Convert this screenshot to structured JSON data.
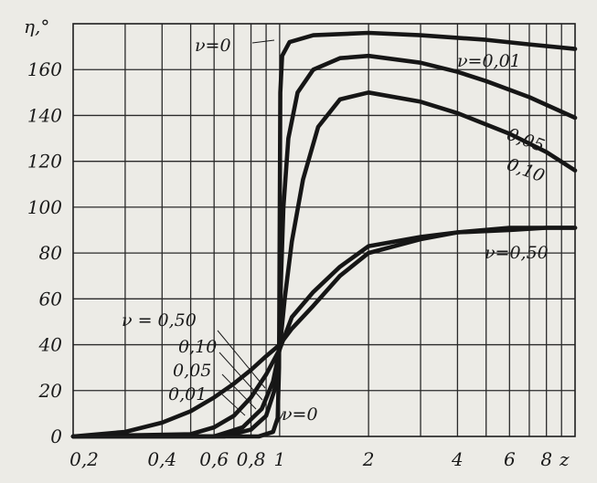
{
  "chart_data": {
    "type": "line",
    "title": "",
    "ylabel": "η,°",
    "xlabel": "z",
    "x_scale": "log",
    "xlim": [
      0.2,
      10
    ],
    "ylim": [
      0,
      180
    ],
    "grid": true,
    "x_ticks": [
      {
        "value": 0.2,
        "label": "0,2"
      },
      {
        "value": 0.4,
        "label": "0,4"
      },
      {
        "value": 0.6,
        "label": "0,6"
      },
      {
        "value": 0.8,
        "label": "0,8"
      },
      {
        "value": 1,
        "label": "1"
      },
      {
        "value": 2,
        "label": "2"
      },
      {
        "value": 4,
        "label": "4"
      },
      {
        "value": 6,
        "label": "6"
      },
      {
        "value": 8,
        "label": "8"
      }
    ],
    "x_axis_end_label": "z",
    "x_gridlines": [
      0.3,
      0.4,
      0.5,
      0.6,
      0.7,
      0.8,
      0.9,
      1,
      2,
      3,
      4,
      5,
      6,
      7,
      8,
      9
    ],
    "y_ticks": [
      0,
      20,
      40,
      60,
      80,
      100,
      120,
      140,
      160
    ],
    "series": [
      {
        "name": "ν=0",
        "points": [
          [
            0.2,
            0
          ],
          [
            0.85,
            0
          ],
          [
            0.95,
            2
          ],
          [
            0.985,
            8
          ],
          [
            0.995,
            30
          ],
          [
            1.0,
            90
          ],
          [
            1.005,
            150
          ],
          [
            1.02,
            166
          ],
          [
            1.08,
            172
          ],
          [
            1.3,
            175
          ],
          [
            2,
            176
          ],
          [
            3,
            175
          ],
          [
            5,
            173
          ],
          [
            7,
            171
          ],
          [
            10,
            169
          ]
        ]
      },
      {
        "name": "0,01",
        "points": [
          [
            0.2,
            0
          ],
          [
            0.65,
            0
          ],
          [
            0.8,
            3
          ],
          [
            0.9,
            9
          ],
          [
            0.96,
            20
          ],
          [
            0.99,
            33
          ],
          [
            1.0,
            45
          ],
          [
            1.01,
            68
          ],
          [
            1.03,
            100
          ],
          [
            1.07,
            130
          ],
          [
            1.15,
            150
          ],
          [
            1.3,
            160
          ],
          [
            1.6,
            165
          ],
          [
            2,
            166
          ],
          [
            3,
            163
          ],
          [
            4,
            159
          ],
          [
            5,
            155
          ],
          [
            7,
            148
          ],
          [
            10,
            139
          ]
        ]
      },
      {
        "name": "0,05",
        "points": [
          [
            0.2,
            0
          ],
          [
            0.6,
            0
          ],
          [
            0.75,
            4
          ],
          [
            0.87,
            12
          ],
          [
            0.95,
            24
          ],
          [
            1.0,
            38
          ],
          [
            1.04,
            60
          ],
          [
            1.1,
            85
          ],
          [
            1.2,
            112
          ],
          [
            1.35,
            135
          ],
          [
            1.6,
            147
          ],
          [
            2,
            150
          ],
          [
            3,
            146
          ],
          [
            4,
            141
          ],
          [
            6,
            132
          ],
          [
            8,
            124
          ],
          [
            10,
            116
          ]
        ]
      },
      {
        "name": "0,10",
        "points": [
          [
            0.2,
            0
          ],
          [
            0.5,
            1
          ],
          [
            0.6,
            4
          ],
          [
            0.7,
            9
          ],
          [
            0.8,
            17
          ],
          [
            0.9,
            27
          ],
          [
            1.0,
            38
          ],
          [
            1.1,
            52
          ],
          [
            1.3,
            63
          ],
          [
            1.6,
            74
          ],
          [
            2,
            83
          ],
          [
            3,
            87
          ],
          [
            4,
            89
          ],
          [
            6,
            91
          ],
          [
            8,
            91
          ],
          [
            10,
            91
          ]
        ]
      },
      {
        "name": "0,50",
        "points": [
          [
            0.2,
            0
          ],
          [
            0.3,
            2
          ],
          [
            0.4,
            6
          ],
          [
            0.5,
            11
          ],
          [
            0.6,
            17
          ],
          [
            0.7,
            23
          ],
          [
            0.8,
            29
          ],
          [
            0.9,
            35
          ],
          [
            1.0,
            40
          ],
          [
            1.1,
            47
          ],
          [
            1.3,
            57
          ],
          [
            1.6,
            70
          ],
          [
            2,
            80
          ],
          [
            3,
            86
          ],
          [
            4,
            89
          ],
          [
            6,
            90
          ],
          [
            8,
            91
          ],
          [
            10,
            91
          ]
        ]
      }
    ],
    "annotations": [
      {
        "text": "ν=0"
      },
      {
        "text": "ν=0,01"
      },
      {
        "text": "0,05"
      },
      {
        "text": "0,10"
      },
      {
        "text": "ν=0,50"
      },
      {
        "text": "ν = 0,50"
      },
      {
        "text": "0,10"
      },
      {
        "text": "0,05"
      },
      {
        "text": "0,01"
      },
      {
        "text": "ν=0"
      }
    ]
  }
}
